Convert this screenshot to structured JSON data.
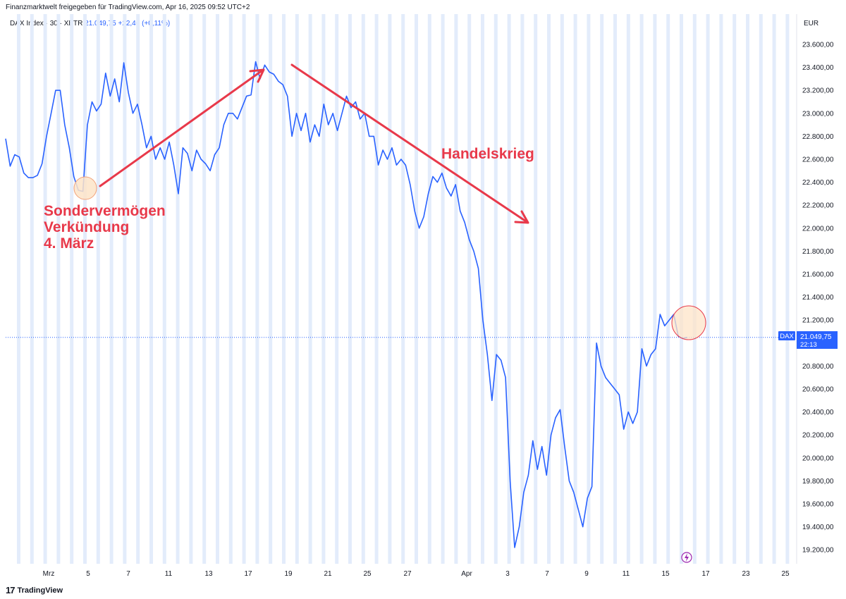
{
  "header": {
    "share_text": "Finanzmarktwelt freigegeben für TradingView.com, Apr 16, 2025 09:52 UTC+2",
    "symbol": "DAX Index · 30 · XETR",
    "last": "21.049,75",
    "change": "+22,46 (+0,11%)",
    "currency": "EUR"
  },
  "price_tag": {
    "label": "DAX",
    "value": "21.049,75",
    "countdown": "22:13"
  },
  "footer": {
    "logo_text": "TradingView"
  },
  "annotations": [
    {
      "text": "Sondervermögen",
      "color": "#e8394a"
    },
    {
      "text": "Verkündung",
      "color": "#e8394a"
    },
    {
      "text": "4. März",
      "color": "#e8394a"
    },
    {
      "text": "Handelskrieg",
      "color": "#e8394a"
    }
  ],
  "colors": {
    "line": "#2962ff",
    "annotation": "#e8394a",
    "highlight_fill": "#fde4c8",
    "session_band": "#e3ecfb"
  },
  "icons": [
    "lightning-icon",
    "tradingview-logo-icon"
  ],
  "chart_data": {
    "type": "line",
    "title": "",
    "xlabel": "",
    "ylabel": "",
    "ylim": [
      19100,
      23750
    ],
    "y_ticks": [
      "23.600,00",
      "23.400,00",
      "23.200,00",
      "23.000,00",
      "22.800,00",
      "22.600,00",
      "22.400,00",
      "22.200,00",
      "22.000,00",
      "21.800,00",
      "21.600,00",
      "21.400,00",
      "21.200,00",
      "21.000,00",
      "20.800,00",
      "20.600,00",
      "20.400,00",
      "20.200,00",
      "20.000,00",
      "19.800,00",
      "19.600,00",
      "19.400,00",
      "19.200,00"
    ],
    "x_ticks": [
      "Mrz",
      "5",
      "7",
      "11",
      "13",
      "17",
      "19",
      "21",
      "25",
      "27",
      "Apr",
      "3",
      "7",
      "9",
      "11",
      "15",
      "17",
      "23",
      "25"
    ],
    "series": [
      {
        "name": "DAX",
        "points": [
          [
            "Feb 28",
            22780
          ],
          [
            "Feb 28",
            22540
          ],
          [
            "Feb 28",
            22640
          ],
          [
            "Mrz 3",
            22620
          ],
          [
            "Mrz 3",
            22480
          ],
          [
            "Mrz 3",
            22440
          ],
          [
            "Mrz 3",
            22440
          ],
          [
            "Mrz 3",
            22460
          ],
          [
            "Mrz 3",
            22560
          ],
          [
            "Mrz 3",
            22800
          ],
          [
            "Mrz 3",
            23000
          ],
          [
            "Mrz 3",
            23200
          ],
          [
            "Mrz 4",
            23200
          ],
          [
            "Mrz 4",
            22900
          ],
          [
            "Mrz 4",
            22700
          ],
          [
            "Mrz 4",
            22450
          ],
          [
            "Mrz 4",
            22330
          ],
          [
            "Mrz 5",
            22320
          ],
          [
            "Mrz 5",
            22900
          ],
          [
            "Mrz 5",
            23100
          ],
          [
            "Mrz 5",
            23020
          ],
          [
            "Mrz 5",
            23080
          ],
          [
            "Mrz 6",
            23350
          ],
          [
            "Mrz 6",
            23150
          ],
          [
            "Mrz 6",
            23300
          ],
          [
            "Mrz 6",
            23100
          ],
          [
            "Mrz 7",
            23440
          ],
          [
            "Mrz 7",
            23180
          ],
          [
            "Mrz 7",
            23000
          ],
          [
            "Mrz 7",
            23080
          ],
          [
            "Mrz 10",
            22900
          ],
          [
            "Mrz 10",
            22700
          ],
          [
            "Mrz 10",
            22800
          ],
          [
            "Mrz 10",
            22600
          ],
          [
            "Mrz 10",
            22700
          ],
          [
            "Mrz 11",
            22600
          ],
          [
            "Mrz 11",
            22750
          ],
          [
            "Mrz 11",
            22550
          ],
          [
            "Mrz 11",
            22300
          ],
          [
            "Mrz 12",
            22700
          ],
          [
            "Mrz 12",
            22650
          ],
          [
            "Mrz 12",
            22500
          ],
          [
            "Mrz 12",
            22680
          ],
          [
            "Mrz 13",
            22600
          ],
          [
            "Mrz 13",
            22560
          ],
          [
            "Mrz 13",
            22500
          ],
          [
            "Mrz 13",
            22640
          ],
          [
            "Mrz 14",
            22700
          ],
          [
            "Mrz 14",
            22900
          ],
          [
            "Mrz 14",
            23000
          ],
          [
            "Mrz 17",
            23000
          ],
          [
            "Mrz 17",
            22950
          ],
          [
            "Mrz 17",
            23050
          ],
          [
            "Mrz 17",
            23150
          ],
          [
            "Mrz 18",
            23160
          ],
          [
            "Mrz 18",
            23450
          ],
          [
            "Mrz 18",
            23300
          ],
          [
            "Mrz 18",
            23420
          ],
          [
            "Mrz 19",
            23360
          ],
          [
            "Mrz 19",
            23340
          ],
          [
            "Mrz 19",
            23280
          ],
          [
            "Mrz 19",
            23250
          ],
          [
            "Mrz 20",
            23150
          ],
          [
            "Mrz 20",
            22800
          ],
          [
            "Mrz 20",
            23000
          ],
          [
            "Mrz 20",
            22850
          ],
          [
            "Mrz 21",
            23000
          ],
          [
            "Mrz 21",
            22750
          ],
          [
            "Mrz 21",
            22900
          ],
          [
            "Mrz 21",
            22800
          ],
          [
            "Mrz 24",
            23080
          ],
          [
            "Mrz 24",
            22900
          ],
          [
            "Mrz 24",
            23000
          ],
          [
            "Mrz 24",
            22850
          ],
          [
            "Mrz 25",
            23000
          ],
          [
            "Mrz 25",
            23150
          ],
          [
            "Mrz 25",
            23050
          ],
          [
            "Mrz 26",
            23100
          ],
          [
            "Mrz 26",
            22950
          ],
          [
            "Mrz 26",
            23000
          ],
          [
            "Mrz 26",
            22800
          ],
          [
            "Mrz 27",
            22800
          ],
          [
            "Mrz 27",
            22550
          ],
          [
            "Mrz 27",
            22680
          ],
          [
            "Mrz 27",
            22600
          ],
          [
            "Mrz 28",
            22700
          ],
          [
            "Mrz 28",
            22550
          ],
          [
            "Mrz 28",
            22600
          ],
          [
            "Mrz 28",
            22550
          ],
          [
            "Mrz 31",
            22380
          ],
          [
            "Mrz 31",
            22150
          ],
          [
            "Mrz 31",
            22000
          ],
          [
            "Apr 1",
            22100
          ],
          [
            "Apr 1",
            22300
          ],
          [
            "Apr 1",
            22450
          ],
          [
            "Apr 1",
            22400
          ],
          [
            "Apr 2",
            22480
          ],
          [
            "Apr 2",
            22350
          ],
          [
            "Apr 2",
            22280
          ],
          [
            "Apr 2",
            22380
          ],
          [
            "Apr 3",
            22150
          ],
          [
            "Apr 3",
            22050
          ],
          [
            "Apr 3",
            21900
          ],
          [
            "Apr 3",
            21800
          ],
          [
            "Apr 4",
            21650
          ],
          [
            "Apr 4",
            21200
          ],
          [
            "Apr 4",
            20900
          ],
          [
            "Apr 4",
            20500
          ],
          [
            "Apr 4",
            20900
          ],
          [
            "Apr 4",
            20850
          ],
          [
            "Apr 4",
            20700
          ],
          [
            "Apr 7",
            19800
          ],
          [
            "Apr 7",
            19220
          ],
          [
            "Apr 7",
            19400
          ],
          [
            "Apr 7",
            19700
          ],
          [
            "Apr 7",
            19850
          ],
          [
            "Apr 8",
            20150
          ],
          [
            "Apr 8",
            19900
          ],
          [
            "Apr 8",
            20100
          ],
          [
            "Apr 8",
            19850
          ],
          [
            "Apr 8",
            20200
          ],
          [
            "Apr 8",
            20350
          ],
          [
            "Apr 9",
            20420
          ],
          [
            "Apr 9",
            20100
          ],
          [
            "Apr 9",
            19800
          ],
          [
            "Apr 9",
            19700
          ],
          [
            "Apr 9",
            19550
          ],
          [
            "Apr 9",
            19400
          ],
          [
            "Apr 9",
            19650
          ],
          [
            "Apr 9",
            19750
          ],
          [
            "Apr 10",
            21000
          ],
          [
            "Apr 10",
            20800
          ],
          [
            "Apr 10",
            20700
          ],
          [
            "Apr 10",
            20650
          ],
          [
            "Apr 10",
            20600
          ],
          [
            "Apr 11",
            20550
          ],
          [
            "Apr 11",
            20250
          ],
          [
            "Apr 11",
            20400
          ],
          [
            "Apr 11",
            20300
          ],
          [
            "Apr 11",
            20400
          ],
          [
            "Apr 14",
            20950
          ],
          [
            "Apr 14",
            20800
          ],
          [
            "Apr 14",
            20900
          ],
          [
            "Apr 14",
            20950
          ],
          [
            "Apr 15",
            21250
          ],
          [
            "Apr 15",
            21150
          ],
          [
            "Apr 15",
            21200
          ],
          [
            "Apr 16",
            21250
          ],
          [
            "Apr 16",
            21060
          ],
          [
            "Apr 16",
            21040
          ],
          [
            "Apr 16",
            21050
          ]
        ]
      }
    ],
    "last_value": 21049.75,
    "legend": "none",
    "grid": false
  }
}
